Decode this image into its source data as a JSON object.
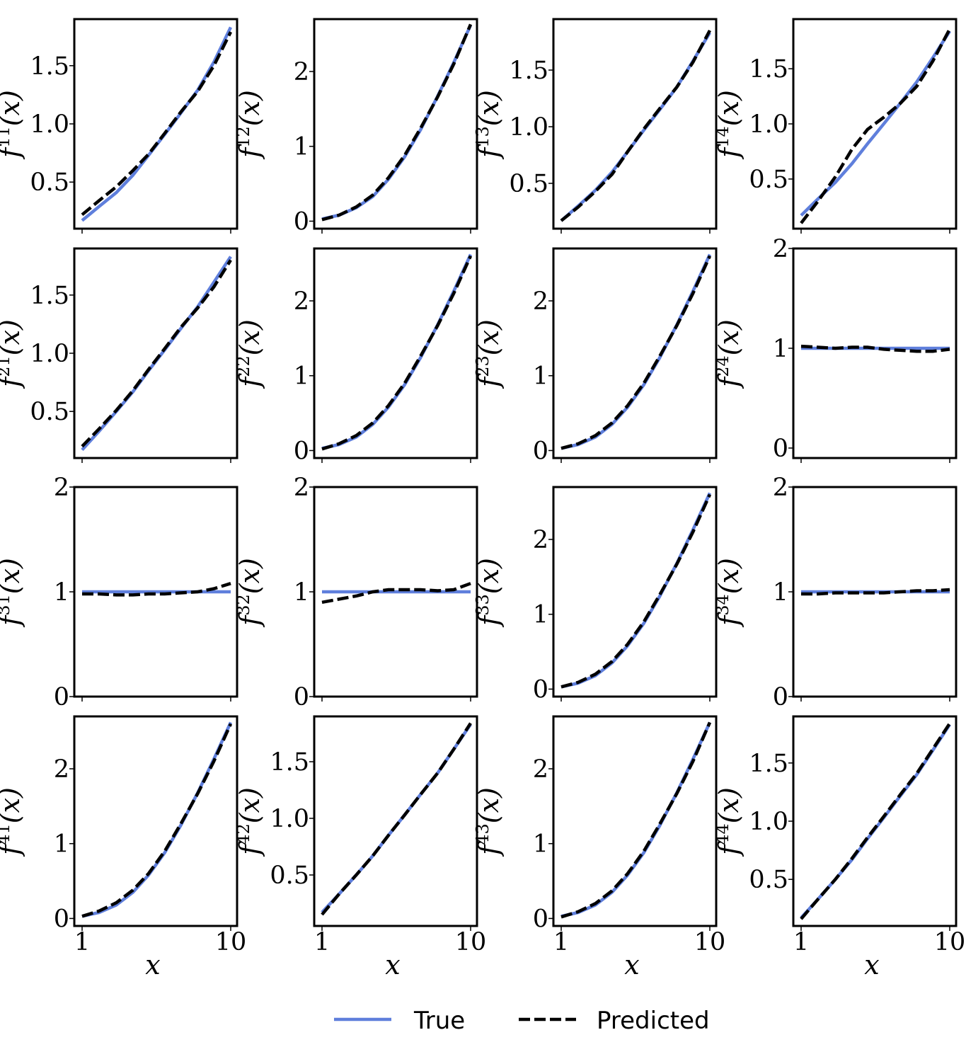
{
  "colors": {
    "true_line": "#5f7fdc",
    "predicted_line": "#000000"
  },
  "legend": {
    "true_label": "True",
    "predicted_label": "Predicted",
    "placement": "bottom-center"
  },
  "x_axis": {
    "label": "x",
    "scale": "log",
    "ticks": [
      1,
      10
    ],
    "tick_labels": [
      "1",
      "10"
    ],
    "shown_on_row": 4
  },
  "chart_data": [
    {
      "type": "line",
      "row": 1,
      "col": 1,
      "ylabel": "f^{11}(x)",
      "ylabel_base": "f",
      "ylabel_sup": "11",
      "ylabel_arg": "(x)",
      "ylim": [
        0.1,
        1.9
      ],
      "yticks": [
        0.5,
        1.0,
        1.5
      ],
      "ytick_labels": [
        "0.5",
        "1.0",
        "1.5"
      ],
      "x": [
        1,
        1.3,
        1.7,
        2.2,
        2.8,
        3.6,
        4.6,
        6,
        7.7,
        10
      ],
      "series": [
        {
          "name": "True",
          "values": [
            0.17,
            0.29,
            0.41,
            0.56,
            0.73,
            0.91,
            1.09,
            1.29,
            1.53,
            1.83
          ]
        },
        {
          "name": "Predicted",
          "values": [
            0.22,
            0.34,
            0.46,
            0.6,
            0.74,
            0.92,
            1.1,
            1.28,
            1.5,
            1.79
          ]
        }
      ]
    },
    {
      "type": "line",
      "row": 1,
      "col": 2,
      "ylabel": "f^{12}(x)",
      "ylabel_base": "f",
      "ylabel_sup": "12",
      "ylabel_arg": "(x)",
      "ylim": [
        -0.1,
        2.7
      ],
      "yticks": [
        0,
        1,
        2
      ],
      "ytick_labels": [
        "0",
        "1",
        "2"
      ],
      "x": [
        1,
        1.3,
        1.7,
        2.2,
        2.8,
        3.6,
        4.6,
        6,
        7.7,
        10
      ],
      "series": [
        {
          "name": "True",
          "values": [
            0.03,
            0.08,
            0.18,
            0.33,
            0.56,
            0.86,
            1.22,
            1.67,
            2.12,
            2.62
          ]
        },
        {
          "name": "Predicted",
          "values": [
            0.02,
            0.08,
            0.19,
            0.35,
            0.58,
            0.88,
            1.24,
            1.66,
            2.1,
            2.63
          ]
        }
      ]
    },
    {
      "type": "line",
      "row": 1,
      "col": 3,
      "ylabel": "f^{13}(x)",
      "ylabel_base": "f",
      "ylabel_sup": "13",
      "ylabel_arg": "(x)",
      "ylim": [
        0.1,
        1.95
      ],
      "yticks": [
        0.5,
        1.0,
        1.5
      ],
      "ytick_labels": [
        "0.5",
        "1.0",
        "1.5"
      ],
      "x": [
        1,
        1.3,
        1.7,
        2.2,
        2.8,
        3.6,
        4.6,
        6,
        7.7,
        10
      ],
      "series": [
        {
          "name": "True",
          "values": [
            0.17,
            0.3,
            0.44,
            0.6,
            0.78,
            0.97,
            1.15,
            1.35,
            1.58,
            1.83
          ]
        },
        {
          "name": "Predicted",
          "values": [
            0.17,
            0.29,
            0.43,
            0.58,
            0.78,
            0.98,
            1.16,
            1.35,
            1.57,
            1.85
          ]
        }
      ]
    },
    {
      "type": "line",
      "row": 1,
      "col": 4,
      "ylabel": "f^{14}(x)",
      "ylabel_base": "f",
      "ylabel_sup": "14",
      "ylabel_arg": "(x)",
      "ylim": [
        0.05,
        1.95
      ],
      "yticks": [
        0.5,
        1.0,
        1.5
      ],
      "ytick_labels": [
        "0.5",
        "1.0",
        "1.5"
      ],
      "x": [
        1,
        1.3,
        1.7,
        2.2,
        2.8,
        3.6,
        4.6,
        6,
        7.7,
        10
      ],
      "series": [
        {
          "name": "True",
          "values": [
            0.17,
            0.32,
            0.47,
            0.64,
            0.82,
            1.0,
            1.18,
            1.38,
            1.6,
            1.84
          ]
        },
        {
          "name": "Predicted",
          "values": [
            0.1,
            0.3,
            0.52,
            0.77,
            0.95,
            1.06,
            1.18,
            1.34,
            1.57,
            1.86
          ]
        }
      ]
    },
    {
      "type": "line",
      "row": 2,
      "col": 1,
      "ylabel": "f^{21}(x)",
      "ylabel_base": "f",
      "ylabel_sup": "21",
      "ylabel_arg": "(x)",
      "ylim": [
        0.1,
        1.9
      ],
      "yticks": [
        0.5,
        1.0,
        1.5
      ],
      "ytick_labels": [
        "0.5",
        "1.0",
        "1.5"
      ],
      "x": [
        1,
        1.3,
        1.7,
        2.2,
        2.8,
        3.6,
        4.6,
        6,
        7.7,
        10
      ],
      "series": [
        {
          "name": "True",
          "values": [
            0.17,
            0.33,
            0.5,
            0.67,
            0.85,
            1.03,
            1.21,
            1.4,
            1.61,
            1.83
          ]
        },
        {
          "name": "Predicted",
          "values": [
            0.2,
            0.35,
            0.51,
            0.68,
            0.86,
            1.04,
            1.22,
            1.39,
            1.57,
            1.8
          ]
        }
      ]
    },
    {
      "type": "line",
      "row": 2,
      "col": 2,
      "ylabel": "f^{22}(x)",
      "ylabel_base": "f",
      "ylabel_sup": "22",
      "ylabel_arg": "(x)",
      "ylim": [
        -0.1,
        2.7
      ],
      "yticks": [
        0,
        1,
        2
      ],
      "ytick_labels": [
        "0",
        "1",
        "2"
      ],
      "x": [
        1,
        1.3,
        1.7,
        2.2,
        2.8,
        3.6,
        4.6,
        6,
        7.7,
        10
      ],
      "series": [
        {
          "name": "True",
          "values": [
            0.03,
            0.08,
            0.18,
            0.35,
            0.58,
            0.88,
            1.24,
            1.68,
            2.13,
            2.62
          ]
        },
        {
          "name": "Predicted",
          "values": [
            0.02,
            0.09,
            0.2,
            0.37,
            0.6,
            0.9,
            1.26,
            1.67,
            2.1,
            2.6
          ]
        }
      ]
    },
    {
      "type": "line",
      "row": 2,
      "col": 3,
      "ylabel": "f^{23}(x)",
      "ylabel_base": "f",
      "ylabel_sup": "23",
      "ylabel_arg": "(x)",
      "ylim": [
        -0.1,
        2.7
      ],
      "yticks": [
        0,
        1,
        2
      ],
      "ytick_labels": [
        "0",
        "1",
        "2"
      ],
      "x": [
        1,
        1.3,
        1.7,
        2.2,
        2.8,
        3.6,
        4.6,
        6,
        7.7,
        10
      ],
      "series": [
        {
          "name": "True",
          "values": [
            0.03,
            0.08,
            0.18,
            0.35,
            0.58,
            0.88,
            1.24,
            1.68,
            2.13,
            2.62
          ]
        },
        {
          "name": "Predicted",
          "values": [
            0.03,
            0.09,
            0.2,
            0.37,
            0.6,
            0.9,
            1.26,
            1.67,
            2.1,
            2.6
          ]
        }
      ]
    },
    {
      "type": "line",
      "row": 2,
      "col": 4,
      "ylabel": "f^{24}(x)",
      "ylabel_base": "f",
      "ylabel_sup": "24",
      "ylabel_arg": "(x)",
      "ylim": [
        -0.1,
        2.0
      ],
      "yticks": [
        0,
        1,
        2
      ],
      "ytick_labels": [
        "0",
        "1",
        "2"
      ],
      "x": [
        1,
        1.3,
        1.7,
        2.2,
        2.8,
        3.6,
        4.6,
        6,
        7.7,
        10
      ],
      "series": [
        {
          "name": "True",
          "values": [
            1,
            1,
            1,
            1,
            1,
            1,
            1,
            1,
            1,
            1
          ]
        },
        {
          "name": "Predicted",
          "values": [
            1.02,
            1.01,
            1.0,
            1.01,
            1.01,
            0.99,
            0.98,
            0.97,
            0.97,
            0.99
          ]
        }
      ]
    },
    {
      "type": "line",
      "row": 3,
      "col": 1,
      "ylabel": "f^{31}(x)",
      "ylabel_base": "f",
      "ylabel_sup": "31",
      "ylabel_arg": "(x)",
      "ylim": [
        0.0,
        2.0
      ],
      "yticks": [
        0,
        1,
        2
      ],
      "ytick_labels": [
        "0",
        "1",
        "2"
      ],
      "x": [
        1,
        1.3,
        1.7,
        2.2,
        2.8,
        3.6,
        4.6,
        6,
        7.7,
        10
      ],
      "series": [
        {
          "name": "True",
          "values": [
            1,
            1,
            1,
            1,
            1,
            1,
            1,
            1,
            1,
            1
          ]
        },
        {
          "name": "Predicted",
          "values": [
            0.98,
            0.98,
            0.97,
            0.97,
            0.98,
            0.98,
            0.99,
            1.0,
            1.03,
            1.08
          ]
        }
      ]
    },
    {
      "type": "line",
      "row": 3,
      "col": 2,
      "ylabel": "f^{32}(x)",
      "ylabel_base": "f",
      "ylabel_sup": "32",
      "ylabel_arg": "(x)",
      "ylim": [
        0.0,
        2.0
      ],
      "yticks": [
        0,
        1,
        2
      ],
      "ytick_labels": [
        "0",
        "1",
        "2"
      ],
      "x": [
        1,
        1.3,
        1.7,
        2.2,
        2.8,
        3.6,
        4.6,
        6,
        7.7,
        10
      ],
      "series": [
        {
          "name": "True",
          "values": [
            1,
            1,
            1,
            1,
            1,
            1,
            1,
            1,
            1,
            1
          ]
        },
        {
          "name": "Predicted",
          "values": [
            0.9,
            0.93,
            0.96,
            1.0,
            1.02,
            1.02,
            1.02,
            1.01,
            1.02,
            1.08
          ]
        }
      ]
    },
    {
      "type": "line",
      "row": 3,
      "col": 3,
      "ylabel": "f^{33}(x)",
      "ylabel_base": "f",
      "ylabel_sup": "33",
      "ylabel_arg": "(x)",
      "ylim": [
        -0.1,
        2.7
      ],
      "yticks": [
        0,
        1,
        2
      ],
      "ytick_labels": [
        "0",
        "1",
        "2"
      ],
      "x": [
        1,
        1.3,
        1.7,
        2.2,
        2.8,
        3.6,
        4.6,
        6,
        7.7,
        10
      ],
      "series": [
        {
          "name": "True",
          "values": [
            0.03,
            0.08,
            0.18,
            0.35,
            0.58,
            0.88,
            1.24,
            1.68,
            2.13,
            2.62
          ]
        },
        {
          "name": "Predicted",
          "values": [
            0.03,
            0.09,
            0.2,
            0.37,
            0.6,
            0.9,
            1.26,
            1.67,
            2.1,
            2.6
          ]
        }
      ]
    },
    {
      "type": "line",
      "row": 3,
      "col": 4,
      "ylabel": "f^{34}(x)",
      "ylabel_base": "f",
      "ylabel_sup": "34",
      "ylabel_arg": "(x)",
      "ylim": [
        0.0,
        2.0
      ],
      "yticks": [
        0,
        1,
        2
      ],
      "ytick_labels": [
        "0",
        "1",
        "2"
      ],
      "x": [
        1,
        1.3,
        1.7,
        2.2,
        2.8,
        3.6,
        4.6,
        6,
        7.7,
        10
      ],
      "series": [
        {
          "name": "True",
          "values": [
            1,
            1,
            1,
            1,
            1,
            1,
            1,
            1,
            1,
            1
          ]
        },
        {
          "name": "Predicted",
          "values": [
            0.98,
            0.98,
            0.99,
            0.99,
            0.99,
            0.99,
            1.0,
            1.01,
            1.01,
            1.02
          ]
        }
      ]
    },
    {
      "type": "line",
      "row": 4,
      "col": 1,
      "ylabel": "f^{41}(x)",
      "ylabel_base": "f",
      "ylabel_sup": "41",
      "ylabel_arg": "(x)",
      "ylim": [
        -0.1,
        2.7
      ],
      "yticks": [
        0,
        1,
        2
      ],
      "ytick_labels": [
        "0",
        "1",
        "2"
      ],
      "x": [
        1,
        1.3,
        1.7,
        2.2,
        2.8,
        3.6,
        4.6,
        6,
        7.7,
        10
      ],
      "series": [
        {
          "name": "True",
          "values": [
            0.03,
            0.08,
            0.18,
            0.35,
            0.58,
            0.88,
            1.24,
            1.68,
            2.13,
            2.62
          ]
        },
        {
          "name": "Predicted",
          "values": [
            0.03,
            0.1,
            0.21,
            0.38,
            0.6,
            0.9,
            1.26,
            1.67,
            2.1,
            2.6
          ]
        }
      ]
    },
    {
      "type": "line",
      "row": 4,
      "col": 2,
      "ylabel": "f^{42}(x)",
      "ylabel_base": "f",
      "ylabel_sup": "42",
      "ylabel_arg": "(x)",
      "ylim": [
        0.05,
        1.9
      ],
      "yticks": [
        0.5,
        1.0,
        1.5
      ],
      "ytick_labels": [
        "0.5",
        "1.0",
        "1.5"
      ],
      "x": [
        1,
        1.3,
        1.7,
        2.2,
        2.8,
        3.6,
        4.6,
        6,
        7.7,
        10
      ],
      "series": [
        {
          "name": "True",
          "values": [
            0.17,
            0.33,
            0.5,
            0.67,
            0.85,
            1.03,
            1.21,
            1.4,
            1.61,
            1.83
          ]
        },
        {
          "name": "Predicted",
          "values": [
            0.15,
            0.33,
            0.5,
            0.67,
            0.85,
            1.03,
            1.21,
            1.4,
            1.61,
            1.84
          ]
        }
      ]
    },
    {
      "type": "line",
      "row": 4,
      "col": 3,
      "ylabel": "f^{43}(x)",
      "ylabel_base": "f",
      "ylabel_sup": "43",
      "ylabel_arg": "(x)",
      "ylim": [
        -0.1,
        2.7
      ],
      "yticks": [
        0,
        1,
        2
      ],
      "ytick_labels": [
        "0",
        "1",
        "2"
      ],
      "x": [
        1,
        1.3,
        1.7,
        2.2,
        2.8,
        3.6,
        4.6,
        6,
        7.7,
        10
      ],
      "series": [
        {
          "name": "True",
          "values": [
            0.03,
            0.08,
            0.18,
            0.35,
            0.58,
            0.88,
            1.24,
            1.68,
            2.13,
            2.62
          ]
        },
        {
          "name": "Predicted",
          "values": [
            0.02,
            0.09,
            0.2,
            0.37,
            0.6,
            0.9,
            1.26,
            1.67,
            2.1,
            2.62
          ]
        }
      ]
    },
    {
      "type": "line",
      "row": 4,
      "col": 4,
      "ylabel": "f^{44}(x)",
      "ylabel_base": "f",
      "ylabel_sup": "44",
      "ylabel_arg": "(x)",
      "ylim": [
        0.1,
        1.9
      ],
      "yticks": [
        0.5,
        1.0,
        1.5
      ],
      "ytick_labels": [
        "0.5",
        "1.0",
        "1.5"
      ],
      "x": [
        1,
        1.3,
        1.7,
        2.2,
        2.8,
        3.6,
        4.6,
        6,
        7.7,
        10
      ],
      "series": [
        {
          "name": "True",
          "values": [
            0.17,
            0.33,
            0.5,
            0.67,
            0.85,
            1.03,
            1.21,
            1.4,
            1.61,
            1.83
          ]
        },
        {
          "name": "Predicted",
          "values": [
            0.16,
            0.33,
            0.5,
            0.68,
            0.86,
            1.04,
            1.22,
            1.41,
            1.62,
            1.84
          ]
        }
      ]
    }
  ]
}
